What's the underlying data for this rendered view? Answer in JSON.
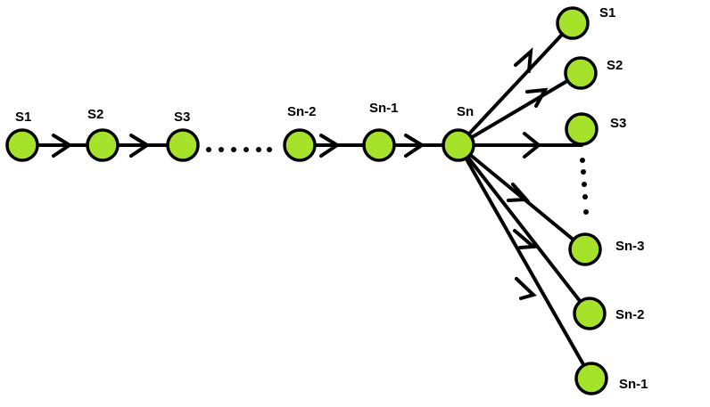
{
  "chain": {
    "s1": "S1",
    "s2": "S2",
    "s3": "S3",
    "sn2": "Sn-2",
    "sn1": "Sn-1",
    "sn": "Sn"
  },
  "fan": {
    "s1": "S1",
    "s2": "S2",
    "s3": "S3",
    "sn3": "Sn-3",
    "sn2": "Sn-2",
    "sn1": "Sn-1"
  },
  "colors": {
    "node_fill": "#a6e22a",
    "stroke": "#000000"
  }
}
